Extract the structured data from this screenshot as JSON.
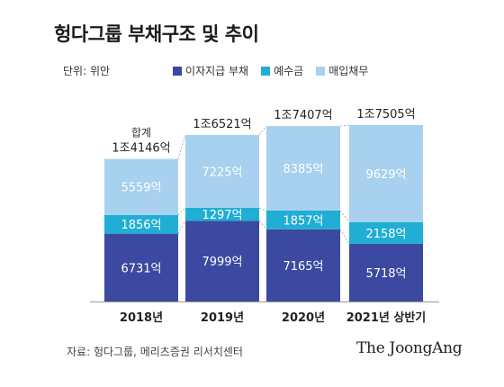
{
  "chart_data": {
    "type": "bar",
    "stacked": true,
    "title": "헝다그룹 부채구조 및 추이",
    "unit": "단위: 위안",
    "categories": [
      "2018년",
      "2019년",
      "2020년",
      "2021년 상반기"
    ],
    "series": [
      {
        "name": "이자지급 부채",
        "color": "#3b4aa0",
        "values": [
          6731,
          7999,
          7165,
          5718
        ],
        "labels": [
          "6731억",
          "7999억",
          "7165억",
          "5718억"
        ]
      },
      {
        "name": "예수금",
        "color": "#21aed4",
        "values": [
          1856,
          1297,
          1857,
          2158
        ],
        "labels": [
          "1856억",
          "1297억",
          "1857억",
          "2158억"
        ]
      },
      {
        "name": "매입채무",
        "color": "#a7d1ee",
        "values": [
          5559,
          7225,
          8385,
          9629
        ],
        "labels": [
          "5559억",
          "7225억",
          "8385억",
          "9629억"
        ]
      }
    ],
    "totals": [
      14146,
      16521,
      17407,
      17505
    ],
    "total_labels": [
      "1조4146억",
      "1조6521억",
      "1조7407억",
      "1조7505억"
    ],
    "total_prefix": "합계",
    "ylim": [
      0,
      17505
    ]
  },
  "footer": {
    "source": "자료: 헝다그룹, 메리츠증권 리서치센터",
    "brand": "The JoongAng"
  }
}
